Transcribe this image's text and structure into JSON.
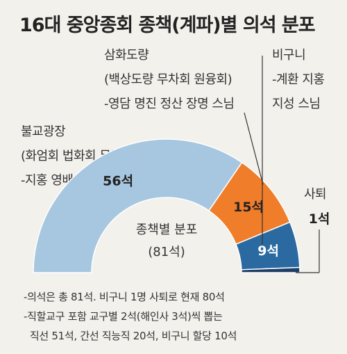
{
  "title": "16대 중앙종회 종책(계파)별 의석 분포",
  "chart_data": {
    "type": "pie",
    "subtype": "half-donut",
    "center_label": [
      "종책별 분포",
      "(81석)"
    ],
    "total": 81,
    "segments": [
      {
        "key": "bulgyo",
        "value": 56,
        "value_label": "56석",
        "color": "#a7c7e0",
        "label_lines": [
          "불교광장",
          "(화엄회 법화회 무량회)",
          "-지홍 영배 지현 성문 스님"
        ]
      },
      {
        "key": "samhwa",
        "value": 15,
        "value_label": "15석",
        "color": "#ef7d2a",
        "label_lines": [
          "삼화도량",
          "(백상도량 무차회 원융회)",
          "-영담 명진 정산 장명 스님"
        ]
      },
      {
        "key": "bigu",
        "value": 9,
        "value_label": "9석",
        "color": "#2b6aa0",
        "label_lines": [
          "비구니",
          "-계환 지홍",
          "지성 스님"
        ]
      },
      {
        "key": "satoe",
        "value": 1,
        "value_label": "1석",
        "color": "#1d3f66",
        "label_lines": [
          "사퇴"
        ]
      }
    ]
  },
  "notes": [
    "-의석은 총 81석. 비구니 1명 사퇴로 현재 80석",
    "-직할교구 포함 교구별 2석(해인사 3석)씩 뽑는",
    "  직선 51석, 간선 직능직 20석, 비구니 할당 10석"
  ]
}
